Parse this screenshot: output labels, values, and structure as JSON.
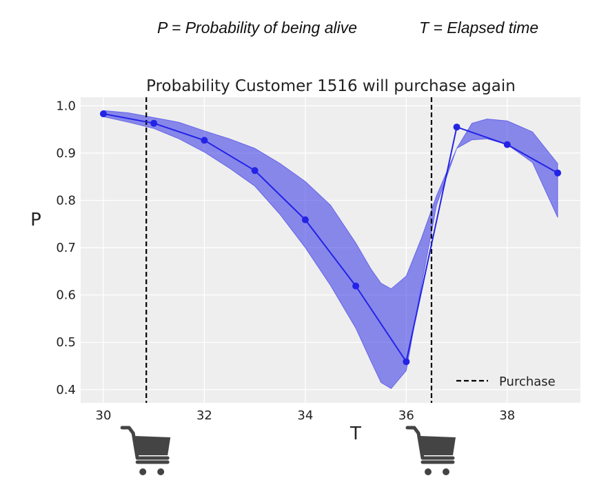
{
  "header": {
    "p_definition": "P = Probability of being alive",
    "t_definition": "T = Elapsed time"
  },
  "chart_data": {
    "type": "line",
    "title": "Probability Customer 1516 will purchase again",
    "xlabel": "T",
    "ylabel": "P",
    "xlim": [
      29.55,
      39.45
    ],
    "ylim": [
      0.372,
      1.018
    ],
    "xticks": [
      30,
      32,
      34,
      36,
      38
    ],
    "yticks": [
      0.4,
      0.5,
      0.6,
      0.7,
      0.8,
      0.9,
      1.0
    ],
    "grid": true,
    "series": [
      {
        "x": [
          30,
          31,
          32,
          33,
          34,
          35,
          36,
          37,
          38,
          39
        ],
        "y": [
          0.983,
          0.963,
          0.927,
          0.863,
          0.759,
          0.619,
          0.459,
          0.955,
          0.918,
          0.858
        ],
        "color": "#2323e6"
      }
    ],
    "band": {
      "x": [
        30,
        30.5,
        31,
        31.5,
        32,
        32.5,
        33,
        33.5,
        34,
        34.5,
        35,
        35.3,
        35.5,
        35.7,
        36,
        36.3,
        36.6,
        37,
        37.3,
        37.6,
        38,
        38.5,
        39
      ],
      "upper": [
        0.99,
        0.985,
        0.975,
        0.965,
        0.947,
        0.93,
        0.91,
        0.878,
        0.84,
        0.79,
        0.71,
        0.655,
        0.625,
        0.613,
        0.64,
        0.72,
        0.81,
        0.91,
        0.963,
        0.972,
        0.968,
        0.945,
        0.878
      ],
      "lower": [
        0.977,
        0.965,
        0.952,
        0.93,
        0.902,
        0.868,
        0.83,
        0.77,
        0.7,
        0.62,
        0.53,
        0.46,
        0.415,
        0.402,
        0.44,
        0.62,
        0.79,
        0.91,
        0.928,
        0.93,
        0.918,
        0.88,
        0.764
      ],
      "color": "#3333e8"
    },
    "purchases": [
      30.85,
      36.5
    ],
    "legend": {
      "label": "Purchase",
      "position": "lower-right"
    },
    "colors": {
      "plot_bg": "#eeeeee",
      "grid": "#ffffff",
      "purchase_line": "#000000",
      "cart_icon": "#444444"
    }
  }
}
